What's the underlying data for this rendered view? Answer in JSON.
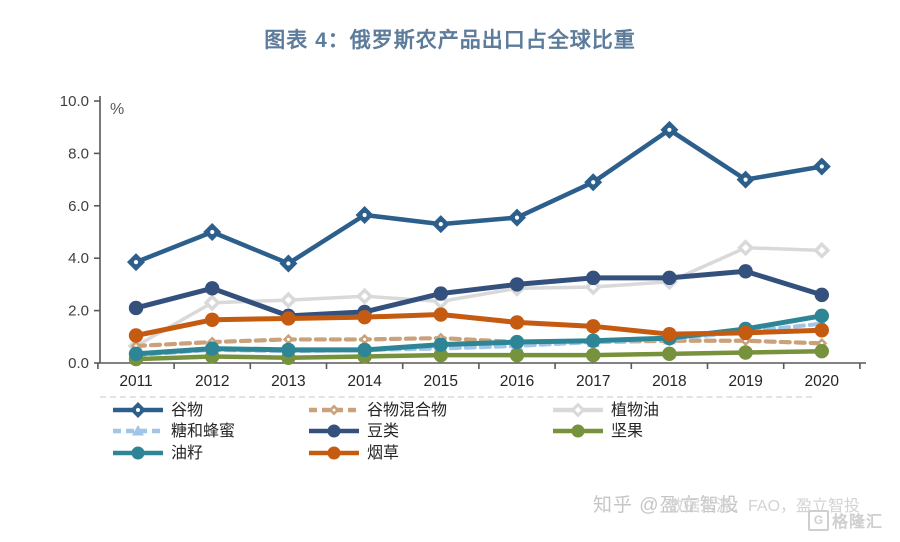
{
  "title": "图表 4：俄罗斯农产品出口占全球比重",
  "chart_data": {
    "type": "line",
    "title": "图表 4：俄罗斯农产品出口占全球比重",
    "ylabel": "%",
    "ylim": [
      0,
      10
    ],
    "ytick_step": 2,
    "ytick_labels": [
      "0.0",
      "2.0",
      "4.0",
      "6.0",
      "8.0",
      "10.0"
    ],
    "grid": "off",
    "legend_position": "bottom",
    "categories": [
      "2011",
      "2012",
      "2013",
      "2014",
      "2015",
      "2016",
      "2017",
      "2018",
      "2019",
      "2020"
    ],
    "series": [
      {
        "name": "谷物",
        "color": "#2c5f8c",
        "style": "solid",
        "marker": "diamond",
        "values": [
          3.85,
          5.0,
          3.8,
          5.65,
          5.3,
          5.55,
          6.9,
          8.9,
          7.0,
          7.5
        ]
      },
      {
        "name": "谷物混合物",
        "color": "#c9a27b",
        "style": "dashed",
        "marker": "diamond-small",
        "values": [
          0.65,
          0.8,
          0.9,
          0.9,
          0.95,
          0.8,
          0.8,
          0.85,
          0.85,
          0.75
        ]
      },
      {
        "name": "植物油",
        "color": "#d9d9d9",
        "style": "solid",
        "marker": "diamond-open",
        "values": [
          0.65,
          2.3,
          2.4,
          2.55,
          2.35,
          2.85,
          2.9,
          3.1,
          4.4,
          4.3
        ]
      },
      {
        "name": "糖和蜂蜜",
        "color": "#9fc5e8",
        "style": "dashed",
        "marker": "triangle",
        "values": [
          0.3,
          0.5,
          0.45,
          0.5,
          0.55,
          0.65,
          0.8,
          0.9,
          1.2,
          1.5
        ]
      },
      {
        "name": "豆类",
        "color": "#34517e",
        "style": "solid",
        "marker": "circle",
        "values": [
          2.1,
          2.85,
          1.8,
          1.95,
          2.65,
          3.0,
          3.25,
          3.25,
          3.5,
          2.6
        ]
      },
      {
        "name": "坚果",
        "color": "#76923c",
        "style": "solid",
        "marker": "circle",
        "values": [
          0.15,
          0.25,
          0.2,
          0.25,
          0.3,
          0.3,
          0.3,
          0.35,
          0.4,
          0.45
        ]
      },
      {
        "name": "油籽",
        "color": "#2e8596",
        "style": "solid",
        "marker": "circle",
        "values": [
          0.35,
          0.55,
          0.5,
          0.5,
          0.7,
          0.8,
          0.85,
          0.95,
          1.3,
          1.8
        ]
      },
      {
        "name": "烟草",
        "color": "#c55a11",
        "style": "solid",
        "marker": "circle",
        "values": [
          1.05,
          1.65,
          1.7,
          1.75,
          1.85,
          1.55,
          1.4,
          1.1,
          1.15,
          1.25
        ]
      }
    ],
    "draw_order": [
      "植物油",
      "谷物混合物",
      "糖和蜂蜜",
      "坚果",
      "油籽",
      "豆类",
      "烟草",
      "谷物"
    ],
    "legend_rows": [
      [
        "谷物",
        "谷物混合物",
        "植物油"
      ],
      [
        "糖和蜂蜜",
        "豆类",
        "坚果"
      ],
      [
        "油籽",
        "烟草"
      ]
    ]
  },
  "axis": {
    "percent_label": "%",
    "tick_color": "#404040",
    "x_label_color": "#262626"
  },
  "footer": {
    "watermark": "知乎 @盈立智投",
    "source": "数据来源：FAO，盈立智投",
    "logo_letter": "G",
    "logo_text": "格隆汇"
  },
  "theme": {
    "title_color": "#5d7c9b",
    "background": "#ffffff"
  }
}
